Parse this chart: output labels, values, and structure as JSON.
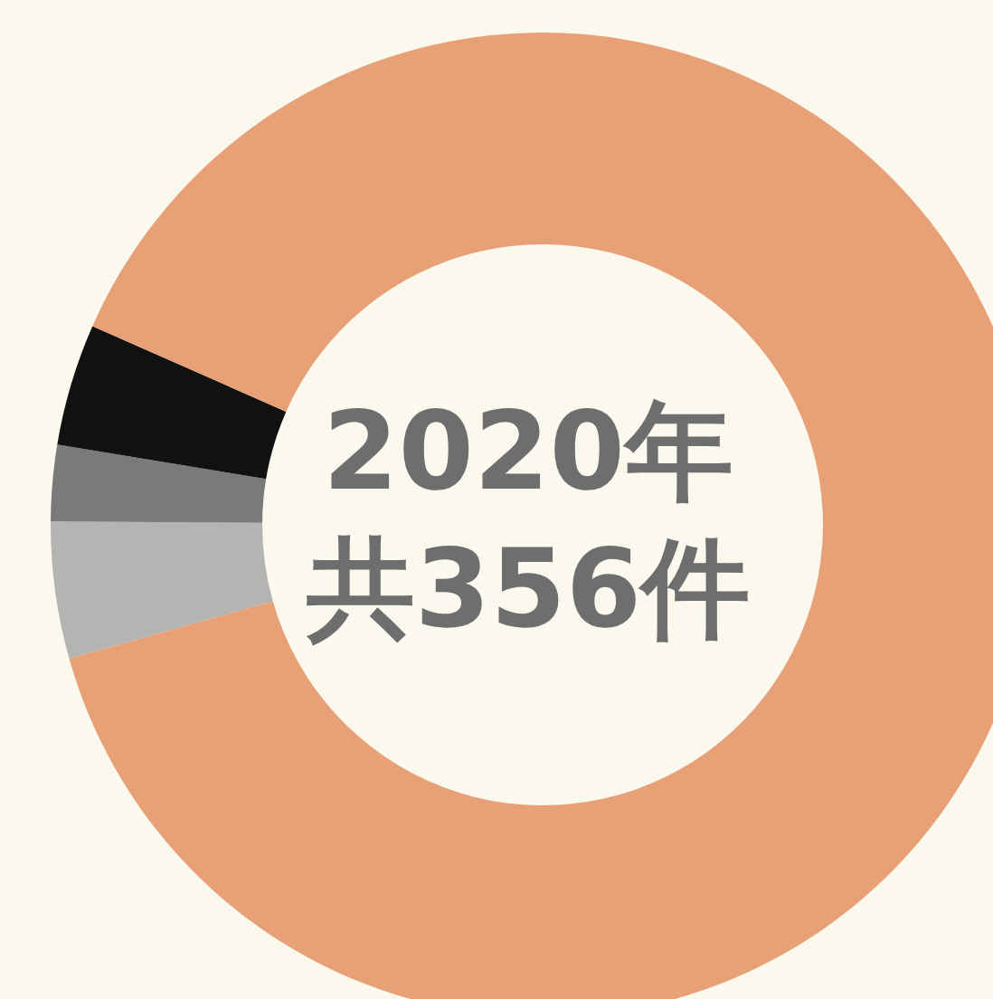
{
  "chart_data": {
    "type": "donut",
    "categories": [
      null,
      null,
      null,
      null
    ],
    "values": [
      4.5,
      2.5,
      4,
      89
    ],
    "colors": [
      "#b4b4b2",
      "#7a7a7a",
      "#111111",
      "#e8a176"
    ],
    "annotations": [
      "2020年",
      "共356件"
    ]
  }
}
